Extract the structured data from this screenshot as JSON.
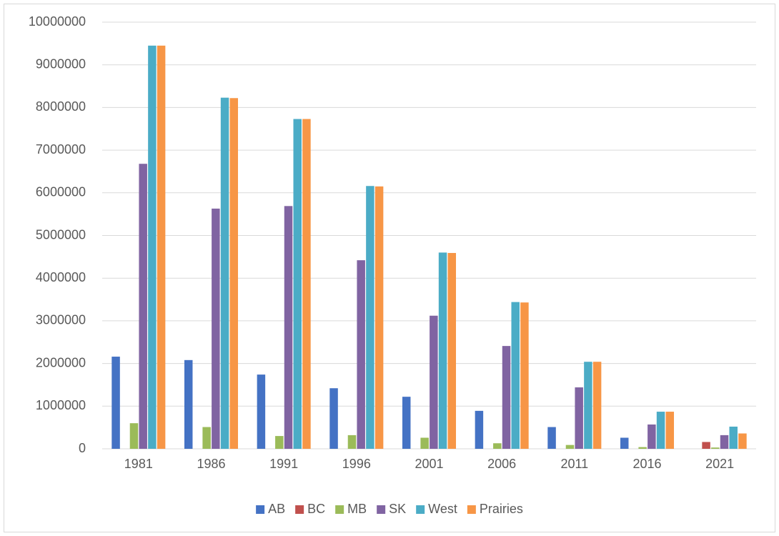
{
  "chart_data": {
    "type": "bar",
    "categories": [
      "1981",
      "1986",
      "1991",
      "1996",
      "2001",
      "2006",
      "2011",
      "2016",
      "2021"
    ],
    "series": [
      {
        "name": "AB",
        "color": "#4472c4",
        "values": [
          2160000,
          2080000,
          1740000,
          1420000,
          1220000,
          890000,
          510000,
          260000,
          0
        ]
      },
      {
        "name": "BC",
        "color": "#c0504d",
        "values": [
          0,
          0,
          0,
          0,
          0,
          0,
          0,
          0,
          160000
        ]
      },
      {
        "name": "MB",
        "color": "#9bbb59",
        "values": [
          600000,
          510000,
          300000,
          320000,
          260000,
          130000,
          90000,
          40000,
          30000
        ]
      },
      {
        "name": "SK",
        "color": "#8064a2",
        "values": [
          6680000,
          5630000,
          5690000,
          4420000,
          3120000,
          2410000,
          1440000,
          570000,
          320000
        ]
      },
      {
        "name": "West",
        "color": "#4bacc6",
        "values": [
          9450000,
          8230000,
          7730000,
          6160000,
          4600000,
          3440000,
          2040000,
          870000,
          520000
        ]
      },
      {
        "name": "Prairies",
        "color": "#f79646",
        "values": [
          9450000,
          8220000,
          7730000,
          6150000,
          4590000,
          3430000,
          2040000,
          870000,
          360000
        ]
      }
    ],
    "ylim": [
      0,
      10000000
    ],
    "yticks": [
      0,
      1000000,
      2000000,
      3000000,
      4000000,
      5000000,
      6000000,
      7000000,
      8000000,
      9000000,
      10000000
    ],
    "grid": true,
    "legend": "bottom"
  }
}
